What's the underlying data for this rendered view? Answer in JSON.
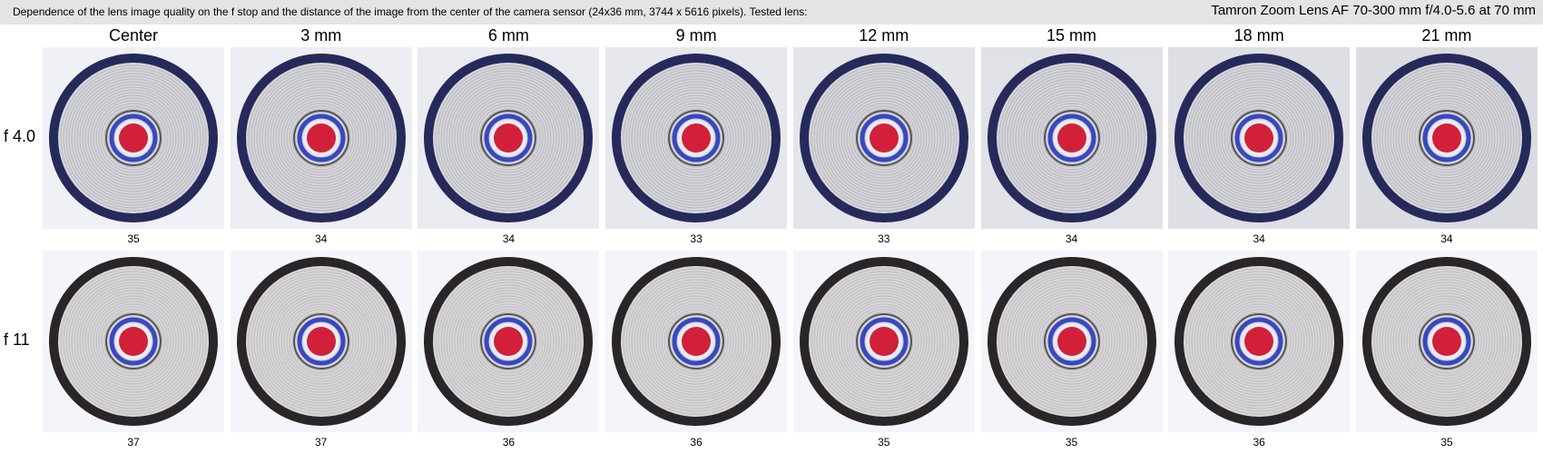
{
  "header": {
    "description": "Dependence of the lens image quality on the f stop and the distance of the image from the center of the camera sensor (24x36 mm, 3744 x 5616 pixels).  Tested lens:",
    "lens": "Tamron Zoom Lens AF 70-300 mm f/4.0-5.6 at 70 mm"
  },
  "columns": [
    "Center",
    "3 mm",
    "6 mm",
    "9 mm",
    "12 mm",
    "15 mm",
    "18 mm",
    "21 mm"
  ],
  "rows": [
    {
      "label": "f 4.0",
      "scores": [
        35,
        34,
        34,
        33,
        33,
        34,
        34,
        34
      ]
    },
    {
      "label": "f 11",
      "scores": [
        37,
        37,
        36,
        36,
        35,
        35,
        36,
        35
      ]
    }
  ]
}
